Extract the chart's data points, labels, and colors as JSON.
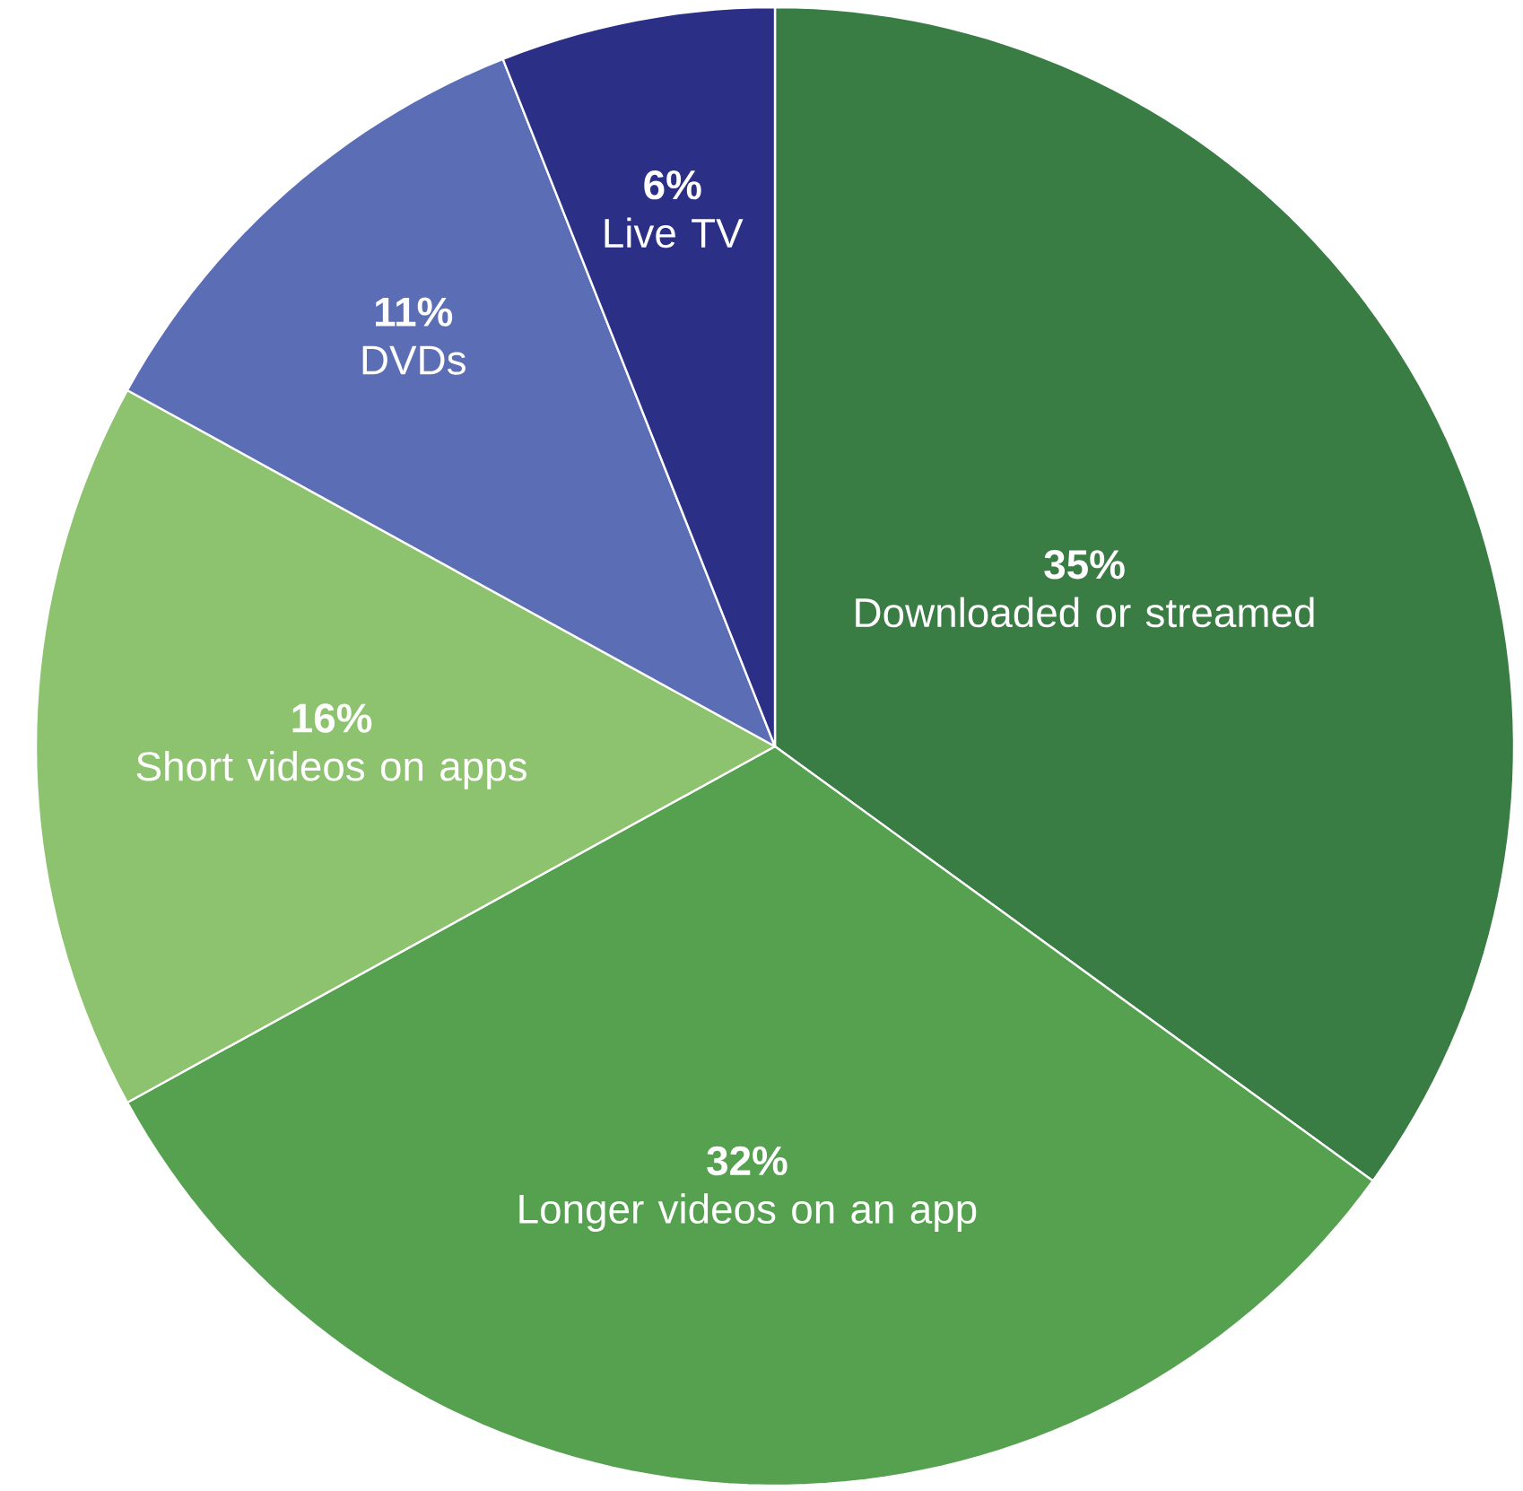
{
  "chart_data": {
    "type": "pie",
    "categories": [
      "Downloaded or streamed",
      "Longer videos on an app",
      "Short videos on apps",
      "DVDs",
      "Live TV"
    ],
    "values": [
      35,
      32,
      16,
      11,
      6
    ],
    "value_labels": [
      "35%",
      "32%",
      "16%",
      "11%",
      "6%"
    ],
    "colors": [
      "#3a7d44",
      "#55a150",
      "#8dc26f",
      "#5b6db5",
      "#2b2f85"
    ]
  }
}
